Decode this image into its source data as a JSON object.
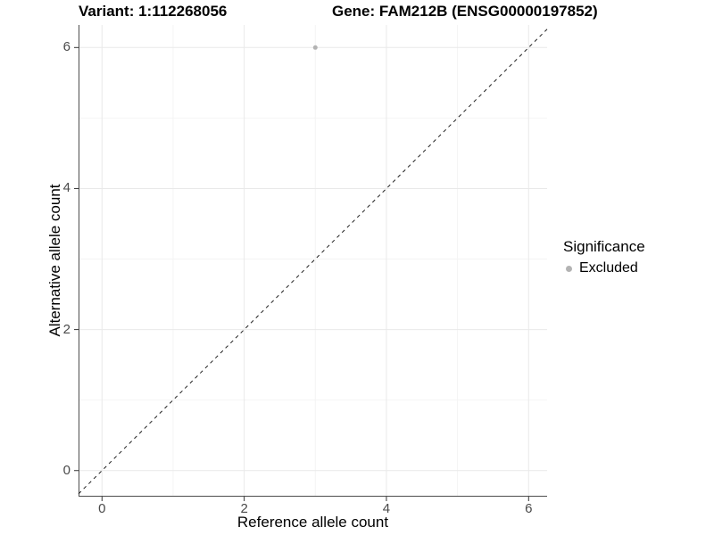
{
  "header": {
    "variant_title": "Variant: 1:112268056",
    "gene_title": "Gene: FAM212B (ENSG00000197852)"
  },
  "axes": {
    "x": {
      "label": "Reference allele count",
      "tick_labels": [
        "0",
        "2",
        "4",
        "6"
      ]
    },
    "y": {
      "label": "Alternative allele count",
      "tick_labels": [
        "0",
        "2",
        "4",
        "6"
      ]
    }
  },
  "legend": {
    "title": "Significance",
    "items": [
      {
        "label": "Excluded",
        "color": "#b3b3b3"
      }
    ]
  },
  "chart_data": {
    "type": "scatter",
    "title": "Variant: 1:112268056 | Gene: FAM212B (ENSG00000197852)",
    "xlabel": "Reference allele count",
    "ylabel": "Alternative allele count",
    "xlim": [
      -0.33,
      6.26
    ],
    "ylim": [
      -0.37,
      6.32
    ],
    "x_ticks": [
      0,
      2,
      4,
      6
    ],
    "y_ticks": [
      0,
      2,
      4,
      6
    ],
    "x_minor": [
      1,
      3,
      5
    ],
    "y_minor": [
      1,
      3,
      5
    ],
    "grid": "major+minor",
    "legend_position": "right",
    "series": [
      {
        "name": "Excluded",
        "color": "#b3b3b3",
        "points": [
          [
            3,
            6
          ]
        ]
      }
    ],
    "reference_line": {
      "slope": 1,
      "intercept": 0,
      "style": "dashed",
      "color": "#222222"
    }
  },
  "colors": {
    "background": "#ffffff",
    "grid_major": "#e9e9e9",
    "grid_minor": "#f4f4f4",
    "axis_line": "#4d4d4d",
    "tick_mark": "#333333",
    "tick_text": "#4a4a4a",
    "title_text": "#000000"
  }
}
